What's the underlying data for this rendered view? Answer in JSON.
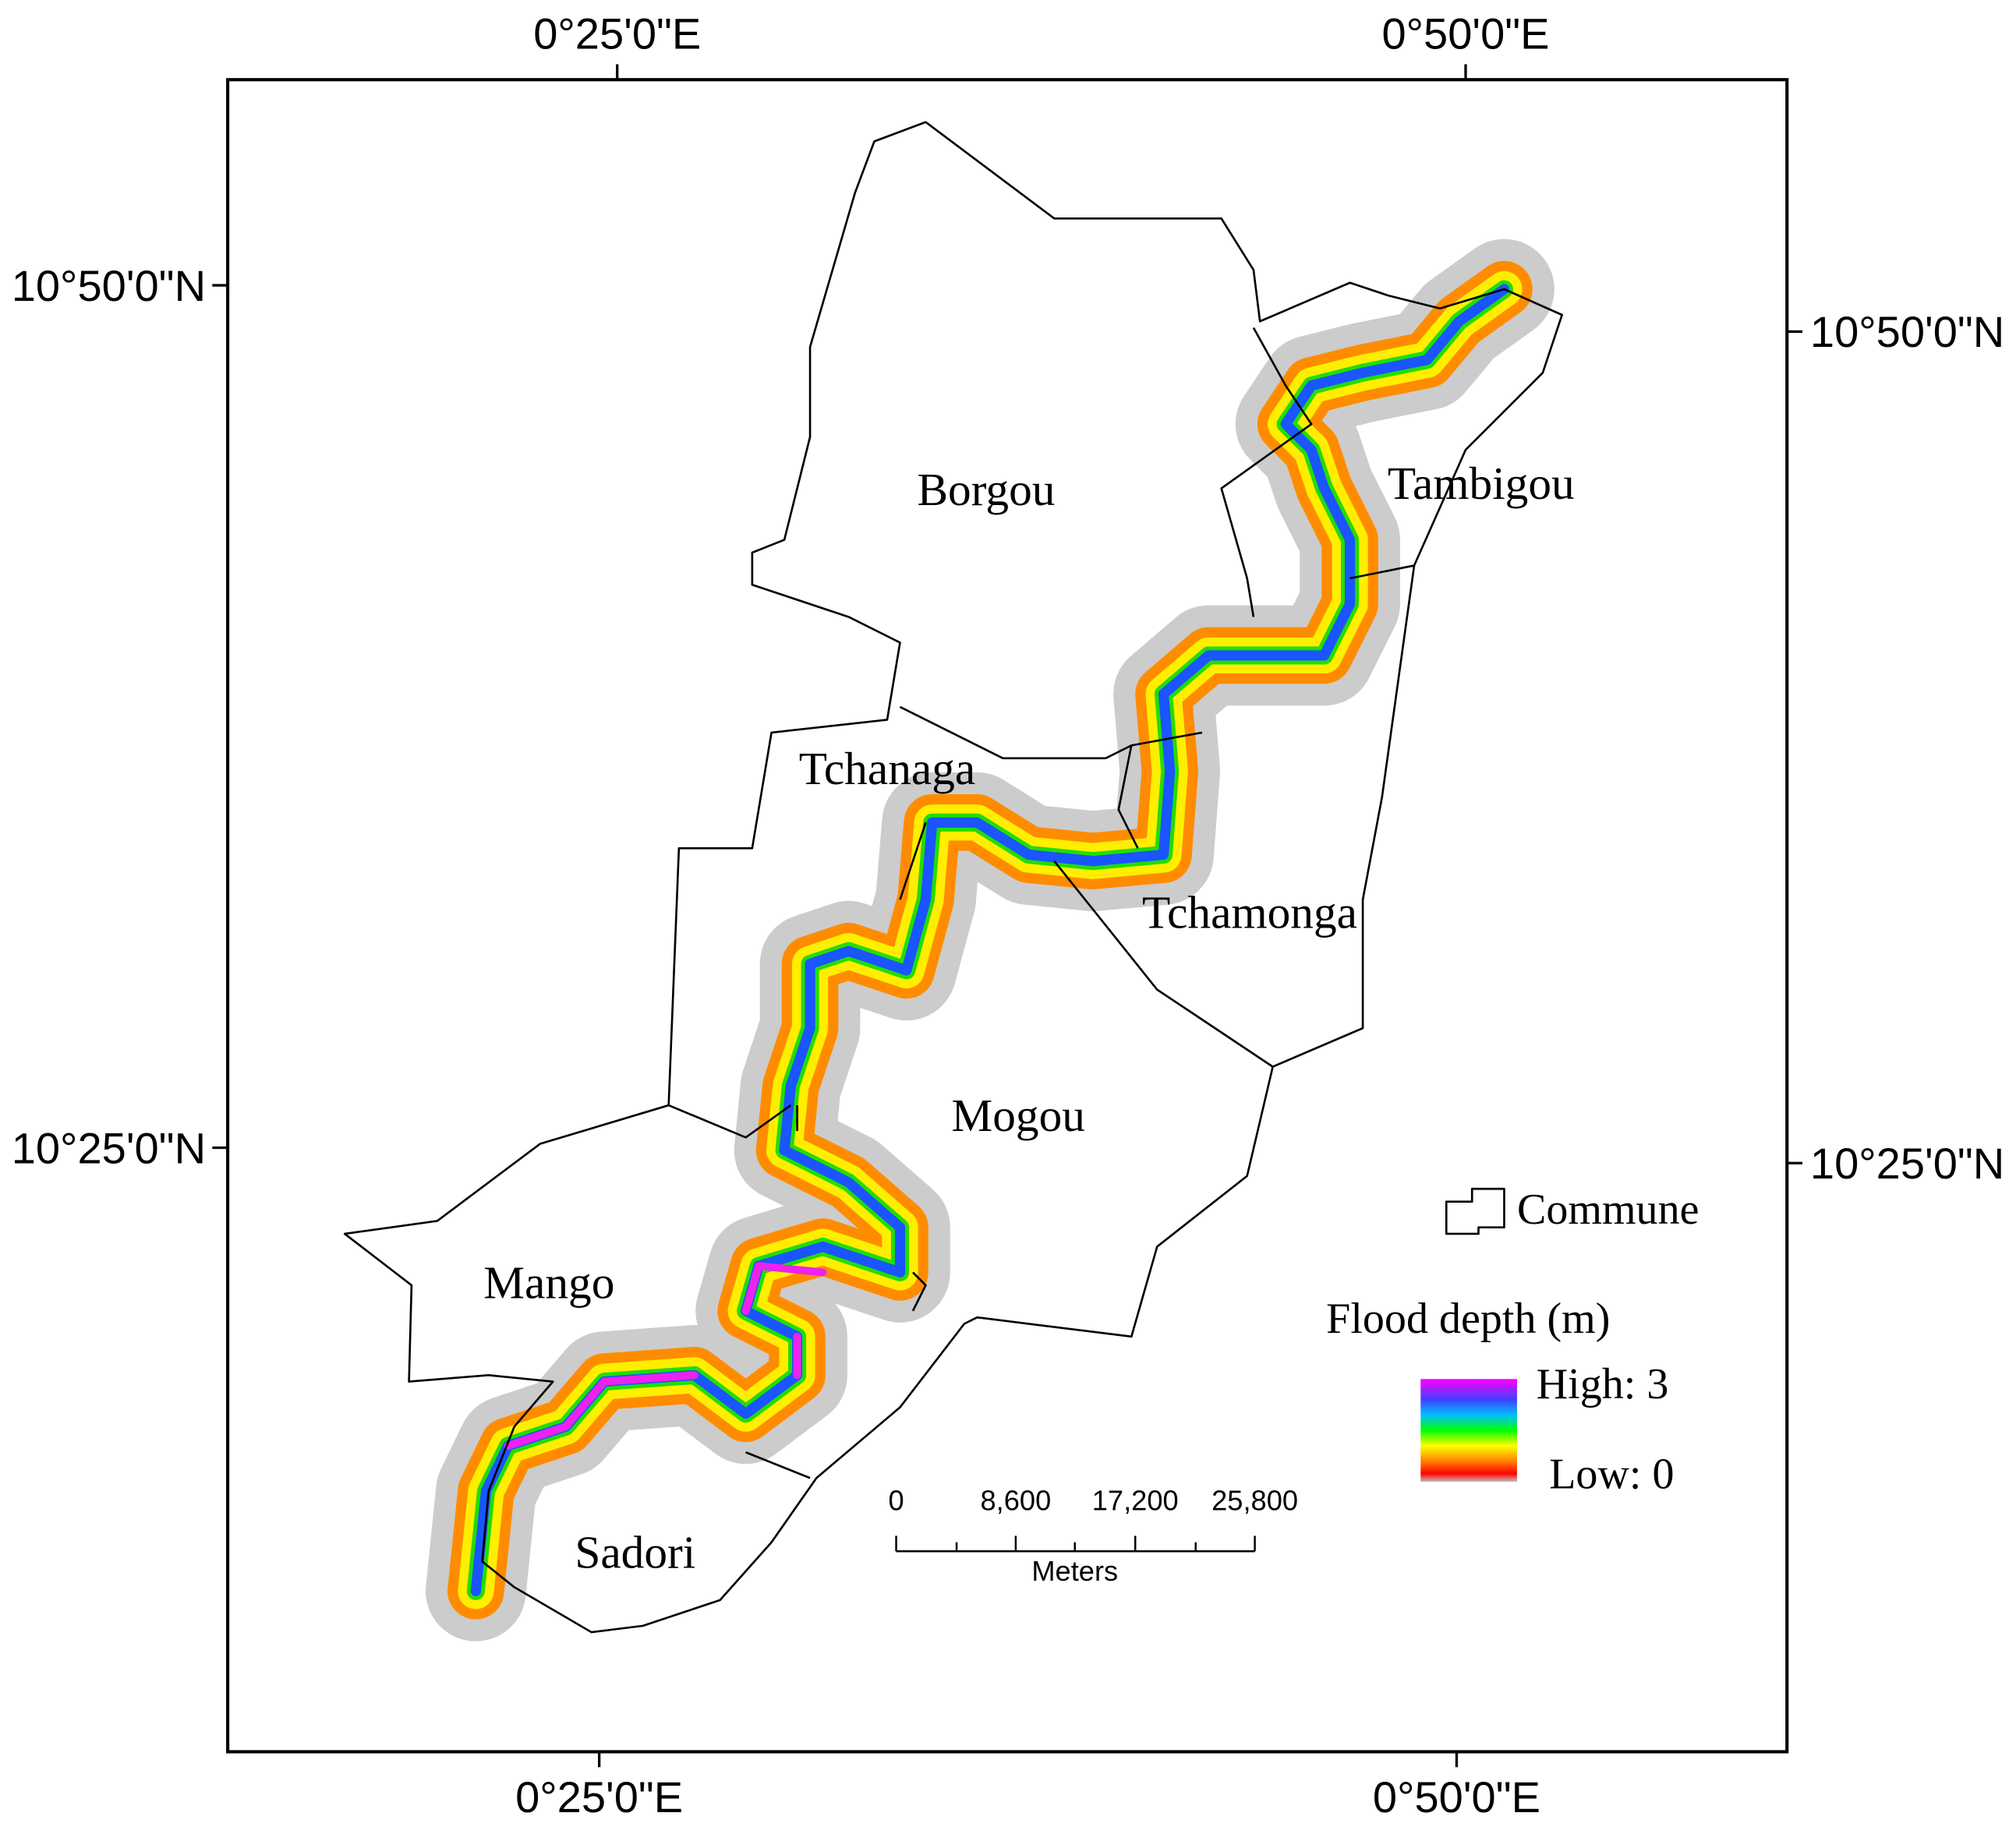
{
  "axes": {
    "top": [
      "0°25'0\"E",
      "0°50'0\"E"
    ],
    "bottom": [
      "0°25'0\"E",
      "0°50'0\"E"
    ],
    "left": [
      "10°50'0\"N",
      "10°25'0\"N"
    ],
    "right": [
      "10°50'0\"N",
      "10°25'0\"N"
    ]
  },
  "communes": [
    "Borgou",
    "Tambigou",
    "Tchanaga",
    "Tchamonga",
    "Mogou",
    "Mango",
    "Sadori"
  ],
  "legend": {
    "boundary": "Commune",
    "title": "Flood depth (m)",
    "high": "High: 3",
    "low": "Low: 0"
  },
  "scale_bar": {
    "ticks": [
      "0",
      "8,600",
      "17,200",
      "25,800"
    ],
    "unit": "Meters"
  }
}
